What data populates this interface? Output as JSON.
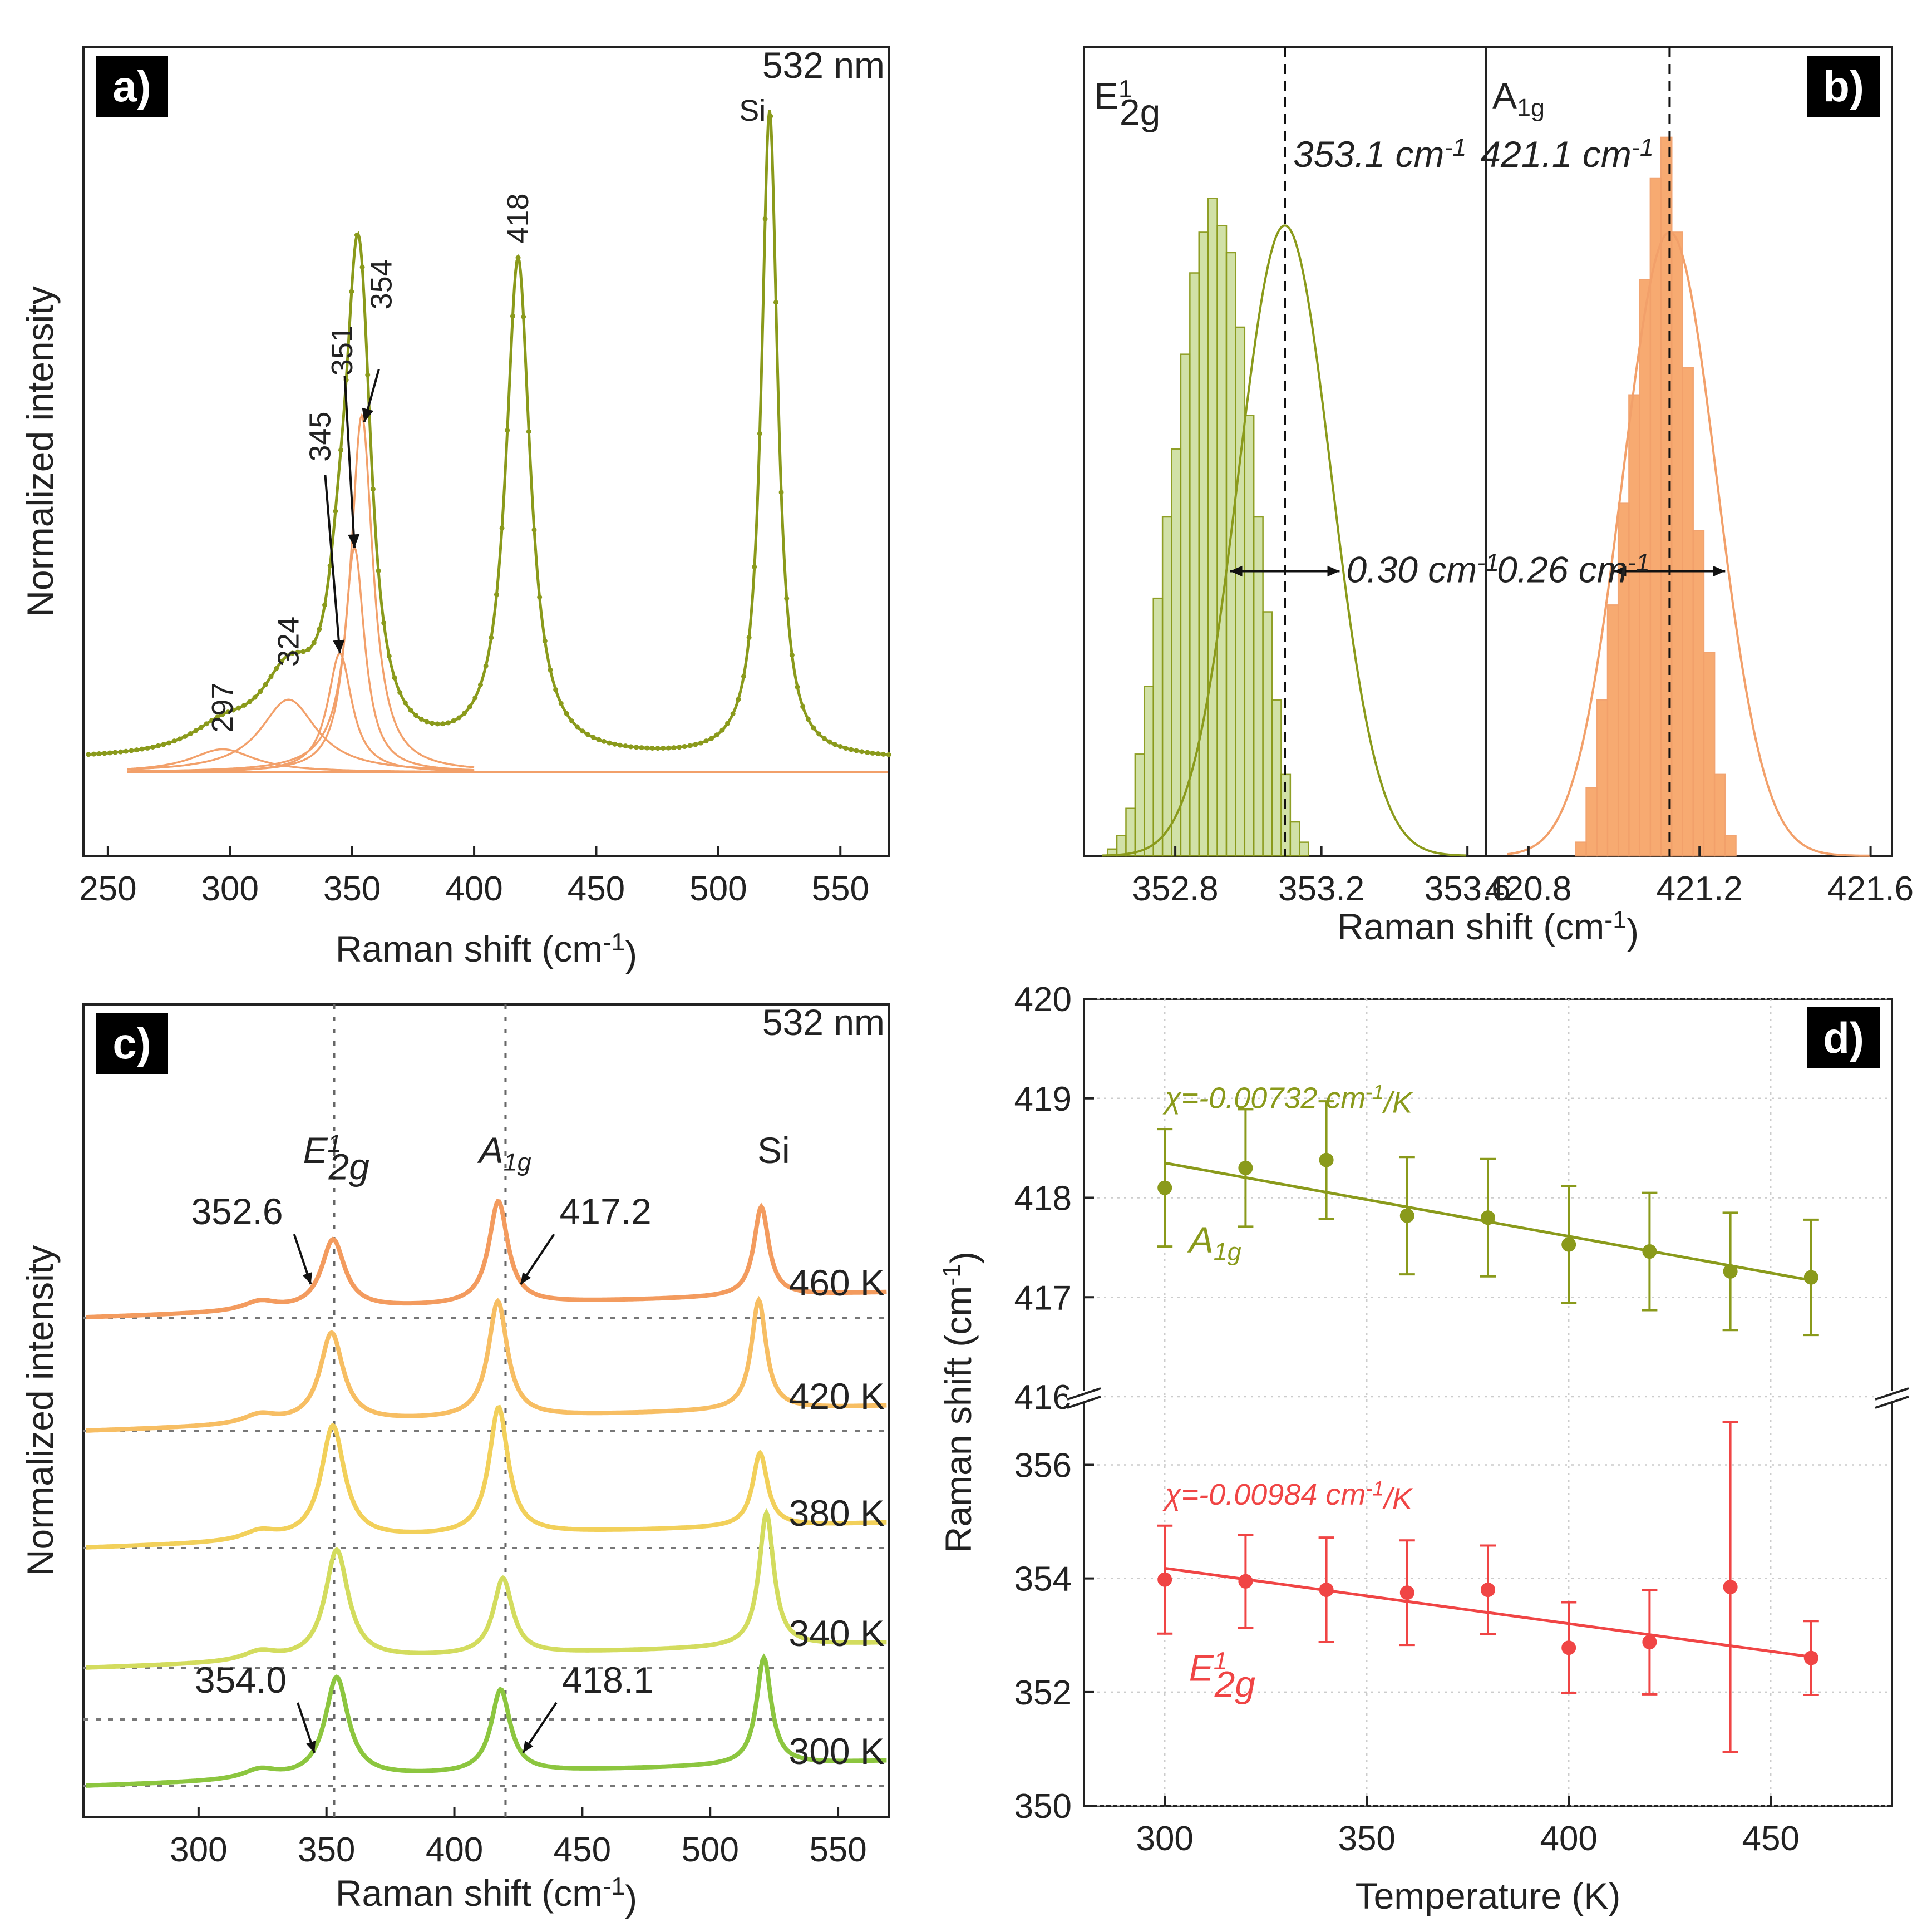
{
  "colors": {
    "olive": "#8a9a1b",
    "orange": "#f2a06a",
    "green_fill": "#cfe0a3",
    "orange_fill": "#f7a66a",
    "red": "#f04545",
    "temp_460": "#f39b5e",
    "temp_420": "#f7be63",
    "temp_380": "#f2d05a",
    "temp_340": "#d3dc5e",
    "temp_300": "#8cc63f"
  },
  "chart_data": [
    {
      "panel": "a)",
      "type": "line",
      "corner_label": "532 nm",
      "xlabel": "Raman shift (cm",
      "xlabel_sup": "-1",
      "xlabel_end": ")",
      "ylabel": "Normalized intensity",
      "xlim": [
        240,
        570
      ],
      "xticks": [
        "250",
        "300",
        "350",
        "400",
        "450",
        "500",
        "550"
      ],
      "xtick_values": [
        250,
        300,
        350,
        400,
        450,
        500,
        550
      ],
      "measured_peaks": [
        {
          "x0": 297,
          "w": 16,
          "a": 0.035
        },
        {
          "x0": 324,
          "w": 14,
          "a": 0.11
        },
        {
          "x0": 345,
          "w": 6,
          "a": 0.16
        },
        {
          "x0": 351,
          "w": 5,
          "a": 0.31
        },
        {
          "x0": 354,
          "w": 5.5,
          "a": 0.45
        },
        {
          "x0": 418,
          "w": 6,
          "a": 0.75
        },
        {
          "x0": 521,
          "w": 4,
          "a": 0.98
        }
      ],
      "fit_components": [
        {
          "x0": 297,
          "w": 16,
          "a": 0.035
        },
        {
          "x0": 324,
          "w": 14,
          "a": 0.11
        },
        {
          "x0": 345,
          "w": 6,
          "a": 0.18
        },
        {
          "x0": 351,
          "w": 5,
          "a": 0.34
        },
        {
          "x0": 354,
          "w": 5.5,
          "a": 0.54
        }
      ],
      "peak_labels": [
        {
          "text": "297",
          "x": 297,
          "y": 0.06
        },
        {
          "text": "324",
          "x": 324,
          "y": 0.16
        },
        {
          "text": "345",
          "x": 337,
          "y": 0.47
        },
        {
          "text": "351",
          "x": 346,
          "y": 0.6
        },
        {
          "text": "354",
          "x": 362,
          "y": 0.7
        },
        {
          "text": "418",
          "x": 418,
          "y": 0.8
        },
        {
          "text": "Si",
          "x": 514,
          "y": 0.99
        }
      ],
      "arrows": [
        {
          "from": [
            339,
            0.45
          ],
          "to": [
            345,
            0.18
          ]
        },
        {
          "from": [
            347,
            0.6
          ],
          "to": [
            351,
            0.34
          ]
        },
        {
          "from": [
            361,
            0.61
          ],
          "to": [
            355,
            0.53
          ]
        }
      ]
    },
    {
      "panel": "b)",
      "type": "bar",
      "xlabel": "Raman shift (cm",
      "xlabel_sup": "-1",
      "xlabel_end": ")",
      "left": {
        "mode_main": "E",
        "mode_sup": "1",
        "mode_sub": "2g",
        "xlim": [
          352.55,
          353.65
        ],
        "xticks": [
          "352.8",
          "353.2",
          "353.6"
        ],
        "xtick_values": [
          352.8,
          353.2,
          353.6
        ],
        "bin_start": 352.615,
        "bin_width": 0.025,
        "counts": [
          0.01,
          0.03,
          0.07,
          0.15,
          0.25,
          0.38,
          0.5,
          0.6,
          0.74,
          0.86,
          0.92,
          0.97,
          0.93,
          0.89,
          0.78,
          0.65,
          0.5,
          0.36,
          0.23,
          0.12,
          0.05,
          0.02
        ],
        "gauss_center": 353.1,
        "gauss_sigma": 0.127,
        "gauss_amp": 0.93,
        "center_label": "353.1 cm",
        "center_sup": "-1",
        "fwhm_label": "0.30 cm",
        "fwhm_sup": "-1",
        "fwhm_range": [
          352.95,
          353.25
        ],
        "fwhm_y": 0.42
      },
      "right": {
        "mode_main": "A",
        "mode_sub": "1g",
        "xlim": [
          420.7,
          421.65
        ],
        "xticks": [
          "420.8",
          "421.2",
          "421.6"
        ],
        "xtick_values": [
          420.8,
          421.2,
          421.6
        ],
        "bin_start": 420.91,
        "bin_width": 0.025,
        "counts": [
          0.02,
          0.1,
          0.23,
          0.37,
          0.52,
          0.68,
          0.85,
          1.0,
          1.06,
          0.92,
          0.72,
          0.48,
          0.3,
          0.12,
          0.03
        ],
        "gauss_center": 421.13,
        "gauss_sigma": 0.11,
        "gauss_amp": 0.92,
        "center_label": "421.1 cm",
        "center_sup": "-1",
        "fwhm_label": "0.26 cm",
        "fwhm_sup": "-1",
        "fwhm_range": [
          421.0,
          421.26
        ],
        "fwhm_y": 0.42
      }
    },
    {
      "panel": "c)",
      "type": "line",
      "corner_label": "532 nm",
      "xlabel": "Raman shift (cm",
      "xlabel_sup": "-1",
      "xlabel_end": ")",
      "ylabel": "Normalized intensity",
      "xlim": [
        255,
        570
      ],
      "xticks": [
        "300",
        "350",
        "400",
        "450",
        "500",
        "550"
      ],
      "xtick_values": [
        300,
        350,
        400,
        450,
        500,
        550
      ],
      "vlines": [
        353,
        420
      ],
      "mode_labels": [
        {
          "main": "E",
          "sup": "1",
          "sub": "2g",
          "x": 356
        },
        {
          "main": "A",
          "sub": "1g",
          "x": 422
        },
        {
          "main": "Si",
          "x": 527
        }
      ],
      "spectra": [
        {
          "label": "460 K",
          "color_key": "temp_460",
          "p1": 352.6,
          "p2": 417.2,
          "si": 520,
          "a1": 0.52,
          "a2": 0.77,
          "a3": 0.67
        },
        {
          "label": "420 K",
          "color_key": "temp_420",
          "p1": 352.0,
          "p2": 417.0,
          "si": 519,
          "a1": 0.67,
          "a2": 0.87,
          "a3": 0.82
        },
        {
          "label": "380 K",
          "color_key": "temp_380",
          "p1": 352.5,
          "p2": 417.3,
          "si": 519.5,
          "a1": 0.85,
          "a2": 0.95,
          "a3": 0.55
        },
        {
          "label": "340 K",
          "color_key": "temp_340",
          "p1": 354.0,
          "p2": 419.0,
          "si": 522,
          "a1": 0.82,
          "a2": 0.57,
          "a3": 1.0
        },
        {
          "label": "300 K",
          "color_key": "temp_300",
          "p1": 354.0,
          "p2": 418.1,
          "si": 521,
          "a1": 0.75,
          "a2": 0.62,
          "a3": 0.8
        }
      ],
      "peak_annotations": [
        {
          "text": "352.6",
          "spectrum": 0,
          "side": "left",
          "x": 352.6
        },
        {
          "text": "417.2",
          "spectrum": 0,
          "side": "right",
          "x": 417.2
        },
        {
          "text": "354.0",
          "spectrum": 4,
          "side": "left",
          "x": 354.0
        },
        {
          "text": "418.1",
          "spectrum": 4,
          "side": "right",
          "x": 418.1
        }
      ]
    },
    {
      "panel": "d)",
      "type": "scatter",
      "xlabel": "Temperature (K)",
      "ylabel": "Raman shift (cm",
      "ylabel_sup": "-1",
      "ylabel_end": ")",
      "xlim": [
        280,
        480
      ],
      "xticks": [
        "300",
        "350",
        "400",
        "450"
      ],
      "xtick_values": [
        300,
        350,
        400,
        450
      ],
      "upper": {
        "ylim": [
          416,
          420
        ],
        "yticks": [
          "416",
          "417",
          "418",
          "419",
          "420"
        ],
        "ytick_values": [
          416,
          417,
          418,
          419,
          420
        ]
      },
      "lower": {
        "ylim": [
          350,
          357.2
        ],
        "yticks": [
          "350",
          "352",
          "354",
          "356"
        ],
        "ytick_values": [
          350,
          352,
          354,
          356
        ]
      },
      "series": [
        {
          "name_main": "A",
          "name_sub": "1g",
          "color_key": "olive",
          "axis": "upper",
          "x": [
            300,
            320,
            340,
            360,
            380,
            400,
            420,
            440,
            460
          ],
          "y": [
            418.1,
            418.3,
            418.38,
            417.82,
            417.8,
            417.53,
            417.46,
            417.26,
            417.2
          ],
          "err": [
            0.59,
            0.59,
            0.59,
            0.59,
            0.59,
            0.59,
            0.59,
            0.59,
            0.58
          ],
          "fit": [
            [
              300,
              418.35
            ],
            [
              460,
              417.17
            ]
          ],
          "slope_label": "χ=-0.00732 cm",
          "slope_sup": "-1",
          "slope_end": "/K"
        },
        {
          "name_main": "E",
          "name_sup": "1",
          "name_sub": "2g",
          "color_key": "red",
          "axis": "lower",
          "x": [
            300,
            320,
            340,
            360,
            380,
            400,
            420,
            440,
            460
          ],
          "y": [
            353.98,
            353.95,
            353.8,
            353.75,
            353.8,
            352.78,
            352.88,
            353.85,
            352.6
          ],
          "err": [
            0.95,
            0.82,
            0.92,
            0.92,
            0.78,
            0.8,
            0.92,
            2.9,
            0.65
          ],
          "fit": [
            [
              300,
              354.18
            ],
            [
              460,
              352.62
            ]
          ],
          "slope_label": "χ=-0.00984 cm",
          "slope_sup": "-1",
          "slope_end": "/K"
        }
      ]
    }
  ]
}
